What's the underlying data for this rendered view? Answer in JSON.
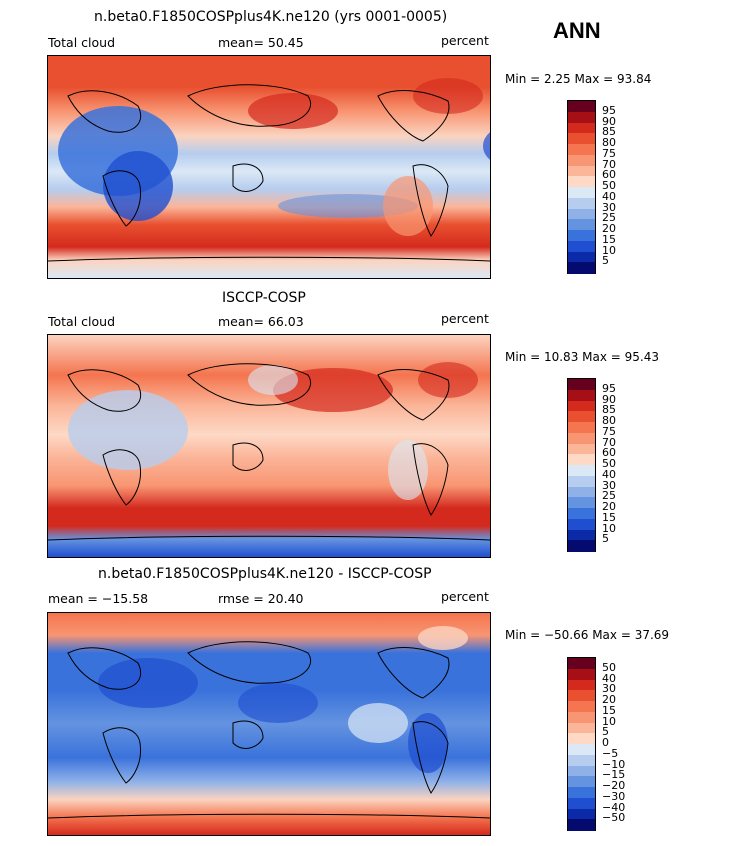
{
  "season": "ANN",
  "panels": [
    {
      "title": "n.beta0.F1850COSPplus4K.ne120 (yrs 0001-0005)",
      "left_label": "Total cloud",
      "mid_label": "mean=  50.45",
      "right_label": "percent",
      "minmax": "Min =   2.25 Max =  93.84",
      "colorbar": {
        "levels": [
          "95",
          "90",
          "85",
          "80",
          "75",
          "70",
          "60",
          "50",
          "40",
          "30",
          "25",
          "20",
          "15",
          "10",
          "5"
        ],
        "colors": [
          "#67001f",
          "#a50f15",
          "#d42a1e",
          "#e8502f",
          "#f4754f",
          "#f89572",
          "#fbb599",
          "#fdd9c6",
          "#dbe8f5",
          "#b6cdef",
          "#8fb1e8",
          "#6493e0",
          "#3a72db",
          "#1f4fd0",
          "#0a2aa8",
          "#050a6e"
        ]
      }
    },
    {
      "title": "ISCCP-COSP",
      "left_label": "Total cloud",
      "mid_label": "mean=  66.03",
      "right_label": "percent",
      "minmax": "Min =  10.83 Max =  95.43",
      "colorbar": {
        "levels": [
          "95",
          "90",
          "85",
          "80",
          "75",
          "70",
          "60",
          "50",
          "40",
          "30",
          "25",
          "20",
          "15",
          "10",
          "5"
        ],
        "colors": [
          "#67001f",
          "#a50f15",
          "#d42a1e",
          "#e8502f",
          "#f4754f",
          "#f89572",
          "#fbb599",
          "#fdd9c6",
          "#dbe8f5",
          "#b6cdef",
          "#8fb1e8",
          "#6493e0",
          "#3a72db",
          "#1f4fd0",
          "#0a2aa8",
          "#050a6e"
        ]
      }
    },
    {
      "title": "n.beta0.F1850COSPplus4K.ne120 - ISCCP-COSP",
      "left_label": "mean = −15.58",
      "mid_label": "rmse =  20.40",
      "right_label": "percent",
      "minmax": "Min = −50.66 Max =  37.69",
      "colorbar": {
        "levels": [
          "50",
          "40",
          "30",
          "20",
          "15",
          "10",
          "5",
          "0",
          "−5",
          "−10",
          "−15",
          "−20",
          "−30",
          "−40",
          "−50"
        ],
        "colors": [
          "#67001f",
          "#a50f15",
          "#d42a1e",
          "#e8502f",
          "#f4754f",
          "#f89572",
          "#fbb599",
          "#fdd9c6",
          "#dbe8f5",
          "#b6cdef",
          "#8fb1e8",
          "#6493e0",
          "#3a72db",
          "#1f4fd0",
          "#0a2aa8",
          "#050a6e"
        ]
      }
    }
  ]
}
